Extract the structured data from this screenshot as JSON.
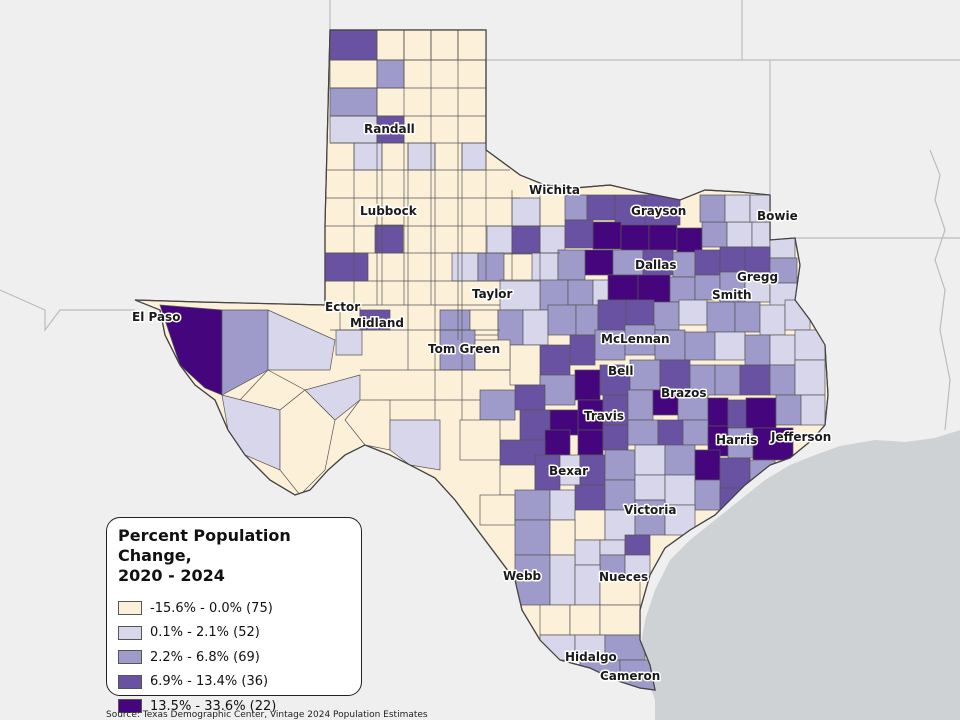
{
  "colors": {
    "background": "#efefef",
    "gulf_water": "#cfd2d4",
    "state_border_other": "#bcbcbc",
    "county_border": "#555555",
    "class1": "#fdf0d9",
    "class2": "#d7d6ea",
    "class3": "#9e9ac9",
    "class4": "#6a52a3",
    "class5": "#45067d"
  },
  "legend": {
    "title_line1": "Percent Population Change,",
    "title_line2": "2020 - 2024",
    "items": [
      {
        "label": "-15.6% - 0.0% (75)",
        "color": "#fdf0d9"
      },
      {
        "label": "0.1% - 2.1% (52)",
        "color": "#d7d6ea"
      },
      {
        "label": "2.2% - 6.8% (69)",
        "color": "#9e9ac9"
      },
      {
        "label": "6.9% - 13.4% (36)",
        "color": "#6a52a3"
      },
      {
        "label": "13.5% - 33.6% (22)",
        "color": "#45067d"
      }
    ]
  },
  "county_labels": [
    {
      "name": "Randall"
    },
    {
      "name": "Lubbock"
    },
    {
      "name": "Wichita"
    },
    {
      "name": "Grayson"
    },
    {
      "name": "Bowie"
    },
    {
      "name": "Dallas"
    },
    {
      "name": "Gregg"
    },
    {
      "name": "Smith"
    },
    {
      "name": "Ector"
    },
    {
      "name": "El Paso"
    },
    {
      "name": "Midland"
    },
    {
      "name": "Taylor"
    },
    {
      "name": "Tom Green"
    },
    {
      "name": "McLennan"
    },
    {
      "name": "Bell"
    },
    {
      "name": "Brazos"
    },
    {
      "name": "Travis"
    },
    {
      "name": "Harris"
    },
    {
      "name": "Jefferson"
    },
    {
      "name": "Bexar"
    },
    {
      "name": "Victoria"
    },
    {
      "name": "Webb"
    },
    {
      "name": "Nueces"
    },
    {
      "name": "Hidalgo"
    },
    {
      "name": "Cameron"
    }
  ],
  "source": "Source: Texas Demographic Center, Vintage 2024 Population Estimates"
}
